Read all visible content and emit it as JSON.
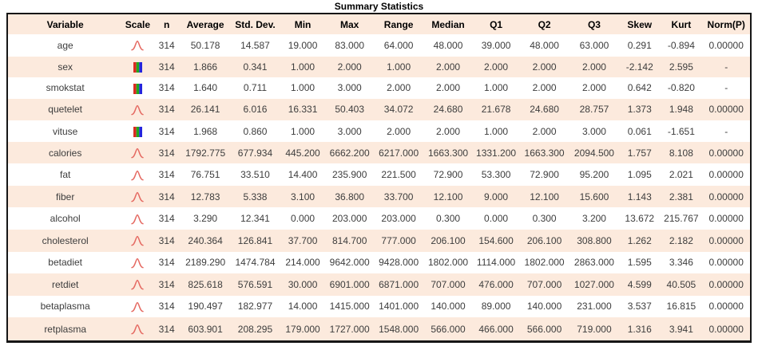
{
  "title": "Summary Statistics",
  "colors": {
    "stripe_bg": "#fceadd",
    "header_bg": "#fceadd",
    "border": "#161616",
    "body_text": "#3d3d3d",
    "bell_curve": "#e56a62",
    "bar_red": "#d92b21",
    "bar_green": "#1fa81f",
    "bar_blue": "#2525dd"
  },
  "icons": {
    "bell-curve": "normal-distribution-curve-icon",
    "rgb-bars": "categorical-rgb-bars-icon"
  },
  "chart_data": {
    "type": "table",
    "title": "Summary Statistics",
    "columns": [
      "Variable",
      "Scale",
      "n",
      "Average",
      "Std. Dev.",
      "Min",
      "Max",
      "Range",
      "Median",
      "Q1",
      "Q2",
      "Q3",
      "Skew",
      "Kurt",
      "Norm(P)"
    ],
    "rows": [
      {
        "variable": "age",
        "scale": "bell-curve",
        "values": [
          "314",
          "50.178",
          "14.587",
          "19.000",
          "83.000",
          "64.000",
          "48.000",
          "39.000",
          "48.000",
          "63.000",
          "0.291",
          "-0.894",
          "0.00000"
        ]
      },
      {
        "variable": "sex",
        "scale": "rgb-bars",
        "values": [
          "314",
          "1.866",
          "0.341",
          "1.000",
          "2.000",
          "1.000",
          "2.000",
          "2.000",
          "2.000",
          "2.000",
          "-2.142",
          "2.595",
          "-"
        ]
      },
      {
        "variable": "smokstat",
        "scale": "rgb-bars",
        "values": [
          "314",
          "1.640",
          "0.711",
          "1.000",
          "3.000",
          "2.000",
          "2.000",
          "1.000",
          "2.000",
          "2.000",
          "0.642",
          "-0.820",
          "-"
        ]
      },
      {
        "variable": "quetelet",
        "scale": "bell-curve",
        "values": [
          "314",
          "26.141",
          "6.016",
          "16.331",
          "50.403",
          "34.072",
          "24.680",
          "21.678",
          "24.680",
          "28.757",
          "1.373",
          "1.948",
          "0.00000"
        ]
      },
      {
        "variable": "vituse",
        "scale": "rgb-bars",
        "values": [
          "314",
          "1.968",
          "0.860",
          "1.000",
          "3.000",
          "2.000",
          "2.000",
          "1.000",
          "2.000",
          "3.000",
          "0.061",
          "-1.651",
          "-"
        ]
      },
      {
        "variable": "calories",
        "scale": "bell-curve",
        "values": [
          "314",
          "1792.775",
          "677.934",
          "445.200",
          "6662.200",
          "6217.000",
          "1663.300",
          "1331.200",
          "1663.300",
          "2094.500",
          "1.757",
          "8.108",
          "0.00000"
        ]
      },
      {
        "variable": "fat",
        "scale": "bell-curve",
        "values": [
          "314",
          "76.751",
          "33.510",
          "14.400",
          "235.900",
          "221.500",
          "72.900",
          "53.300",
          "72.900",
          "95.200",
          "1.095",
          "2.021",
          "0.00000"
        ]
      },
      {
        "variable": "fiber",
        "scale": "bell-curve",
        "values": [
          "314",
          "12.783",
          "5.338",
          "3.100",
          "36.800",
          "33.700",
          "12.100",
          "9.000",
          "12.100",
          "15.600",
          "1.143",
          "2.381",
          "0.00000"
        ]
      },
      {
        "variable": "alcohol",
        "scale": "bell-curve",
        "values": [
          "314",
          "3.290",
          "12.341",
          "0.000",
          "203.000",
          "203.000",
          "0.300",
          "0.000",
          "0.300",
          "3.200",
          "13.672",
          "215.767",
          "0.00000"
        ]
      },
      {
        "variable": "cholesterol",
        "scale": "bell-curve",
        "values": [
          "314",
          "240.364",
          "126.841",
          "37.700",
          "814.700",
          "777.000",
          "206.100",
          "154.600",
          "206.100",
          "308.800",
          "1.262",
          "2.182",
          "0.00000"
        ]
      },
      {
        "variable": "betadiet",
        "scale": "bell-curve",
        "values": [
          "314",
          "2189.290",
          "1474.784",
          "214.000",
          "9642.000",
          "9428.000",
          "1802.000",
          "1114.000",
          "1802.000",
          "2863.000",
          "1.595",
          "3.346",
          "0.00000"
        ]
      },
      {
        "variable": "retdiet",
        "scale": "bell-curve",
        "values": [
          "314",
          "825.618",
          "576.591",
          "30.000",
          "6901.000",
          "6871.000",
          "707.000",
          "476.000",
          "707.000",
          "1027.000",
          "4.599",
          "40.505",
          "0.00000"
        ]
      },
      {
        "variable": "betaplasma",
        "scale": "bell-curve",
        "values": [
          "314",
          "190.497",
          "182.977",
          "14.000",
          "1415.000",
          "1401.000",
          "140.000",
          "89.000",
          "140.000",
          "231.000",
          "3.537",
          "16.815",
          "0.00000"
        ]
      },
      {
        "variable": "retplasma",
        "scale": "bell-curve",
        "values": [
          "314",
          "603.901",
          "208.295",
          "179.000",
          "1727.000",
          "1548.000",
          "566.000",
          "466.000",
          "566.000",
          "719.000",
          "1.316",
          "3.941",
          "0.00000"
        ]
      }
    ]
  }
}
